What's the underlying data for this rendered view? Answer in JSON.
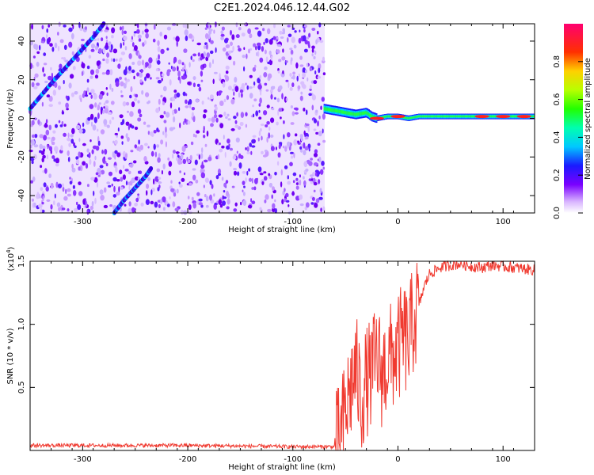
{
  "title": "C2E1.2024.046.12.44.G02",
  "chart_data": [
    {
      "type": "heatmap",
      "xlabel": "Height of straight line (km)",
      "ylabel": "Frequency (Hz)",
      "xlim": [
        -350,
        130
      ],
      "ylim": [
        -49,
        49
      ],
      "xticks": [
        -300,
        -200,
        -100,
        0,
        100
      ],
      "yticks": [
        -40,
        -20,
        0,
        20,
        40
      ],
      "xtick_labels": [
        "-300",
        "-200",
        "-100",
        "0",
        "100"
      ],
      "ytick_labels": [
        "-40",
        "-20",
        "0",
        "20",
        "40"
      ],
      "noise_region_x": [
        -350,
        -70
      ],
      "signal_track": {
        "x": [
          -70,
          -60,
          -50,
          -40,
          -30,
          -25,
          -20,
          -10,
          0,
          10,
          20,
          40,
          60,
          80,
          100,
          120,
          130
        ],
        "y": [
          5,
          4,
          3,
          2,
          3,
          1,
          0,
          1,
          1,
          0,
          1,
          1,
          1,
          1,
          1,
          1,
          1
        ]
      },
      "descending_tracks": [
        {
          "x": [
            -350,
            -330,
            -310,
            -290,
            -280
          ],
          "y": [
            5,
            18,
            30,
            42,
            49
          ]
        },
        {
          "x": [
            -270,
            -260,
            -250,
            -240,
            -235
          ],
          "y": [
            -49,
            -42,
            -36,
            -30,
            -26
          ]
        }
      ],
      "colorbar": {
        "label": "Normalized spectral amplitude",
        "range": [
          0,
          1
        ],
        "ticks": [
          0.0,
          0.2,
          0.4,
          0.6,
          0.8
        ],
        "tick_labels": [
          "0.0",
          "0.2",
          "0.4",
          "0.6",
          "0.8"
        ]
      }
    },
    {
      "type": "line",
      "xlabel": "Height of straight line (km)",
      "ylabel": "SNR (10 * v/v)",
      "y_multiplier": "(x10",
      "y_multiplier_exp": "4",
      "y_multiplier_close": ")",
      "xlim": [
        -350,
        130
      ],
      "ylim": [
        0,
        15000
      ],
      "xticks": [
        -300,
        -200,
        -100,
        0,
        100
      ],
      "yticks": [
        5000,
        10000,
        15000
      ],
      "xtick_labels": [
        "-300",
        "-200",
        "-100",
        "0",
        "100"
      ],
      "ytick_labels": [
        "0.5",
        "1.0",
        "1.5"
      ],
      "series": [
        {
          "color": "#f03a30",
          "x": [
            -350,
            -300,
            -250,
            -200,
            -150,
            -100,
            -60,
            -55,
            -50,
            -45,
            -40,
            -35,
            -30,
            -25,
            -20,
            -15,
            -10,
            -5,
            0,
            5,
            10,
            15,
            20,
            25,
            30,
            40,
            50,
            60,
            70,
            80,
            90,
            100,
            110,
            120,
            130
          ],
          "y": [
            400,
            400,
            400,
            400,
            350,
            300,
            300,
            900,
            3000,
            5000,
            6500,
            4000,
            5500,
            6000,
            7500,
            6000,
            7000,
            7500,
            8000,
            9000,
            8500,
            10500,
            11500,
            13000,
            14000,
            14500,
            14700,
            14800,
            14600,
            14500,
            14700,
            14600,
            14500,
            14400,
            14300
          ]
        }
      ]
    }
  ]
}
